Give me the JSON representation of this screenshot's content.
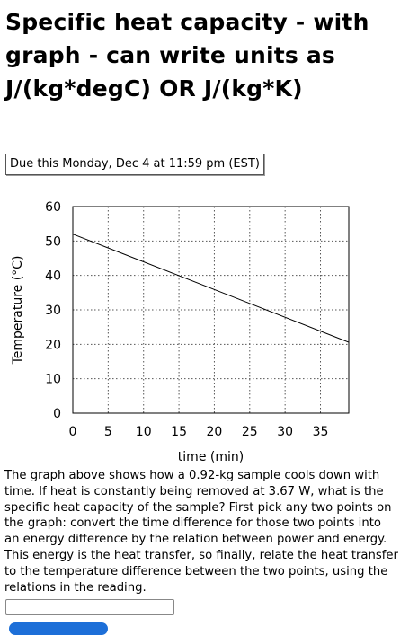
{
  "problem": {
    "title": "Specific heat capacity - with graph - can write units as J/(kg*degC) OR J/(kg*K)",
    "due": "Due this Monday, Dec 4 at 11:59 pm (EST)",
    "question": "The graph above shows how a 0.92-kg sample cools down with time. If heat is constantly being removed at 3.67 W, what is the specific heat capacity of the sample? First pick any two points on the graph: convert the time difference for those two points into an energy difference by the relation between power and energy. This energy is the heat transfer, so finally, relate the heat transfer to the temperature difference between the two points, using the relations in the reading."
  },
  "chart_data": {
    "type": "line",
    "title": "",
    "xlabel": "time (min)",
    "ylabel": "Temperature (°C)",
    "xlim": [
      0,
      39
    ],
    "ylim": [
      0,
      60
    ],
    "xticks": [
      0,
      5,
      10,
      15,
      20,
      25,
      30,
      35
    ],
    "yticks": [
      0,
      10,
      20,
      30,
      40,
      50,
      60
    ],
    "grid": true,
    "legend": "none",
    "series": [
      {
        "x": [
          0,
          39
        ],
        "y": [
          52,
          20.6
        ]
      }
    ]
  },
  "answer": {
    "value": "",
    "placeholder": ""
  }
}
